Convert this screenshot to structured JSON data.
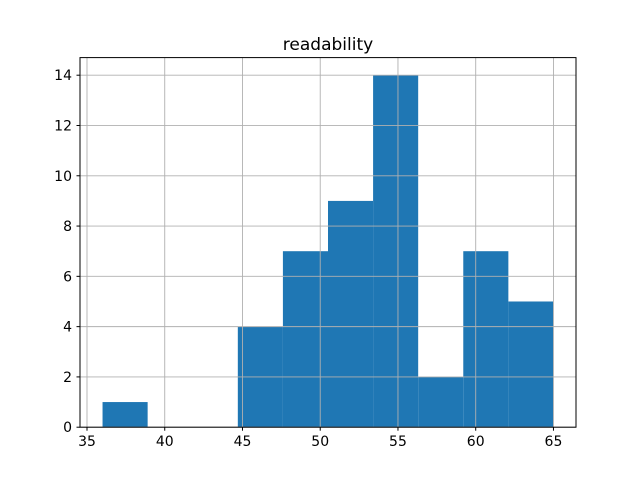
{
  "figure": {
    "title": "readability"
  },
  "chart_data": {
    "type": "bar",
    "subtype": "histogram",
    "title": "readability",
    "xlabel": "",
    "ylabel": "",
    "bin_edges": [
      36.0,
      38.9,
      41.8,
      44.7,
      47.6,
      50.5,
      53.4,
      56.3,
      59.2,
      62.1,
      65.0
    ],
    "counts": [
      1,
      0,
      0,
      4,
      7,
      9,
      14,
      2,
      7,
      5
    ],
    "xticks": [
      35,
      40,
      45,
      50,
      55,
      60,
      65
    ],
    "yticks": [
      0,
      2,
      4,
      6,
      8,
      10,
      12,
      14
    ],
    "xlim": [
      34.55,
      66.45
    ],
    "ylim": [
      0,
      14.7
    ],
    "grid": true,
    "legend": false,
    "colors": {
      "bar": "#1f77b4",
      "grid": "#b0b0b0",
      "spine": "#000000",
      "text": "#000000",
      "background": "#ffffff"
    }
  }
}
